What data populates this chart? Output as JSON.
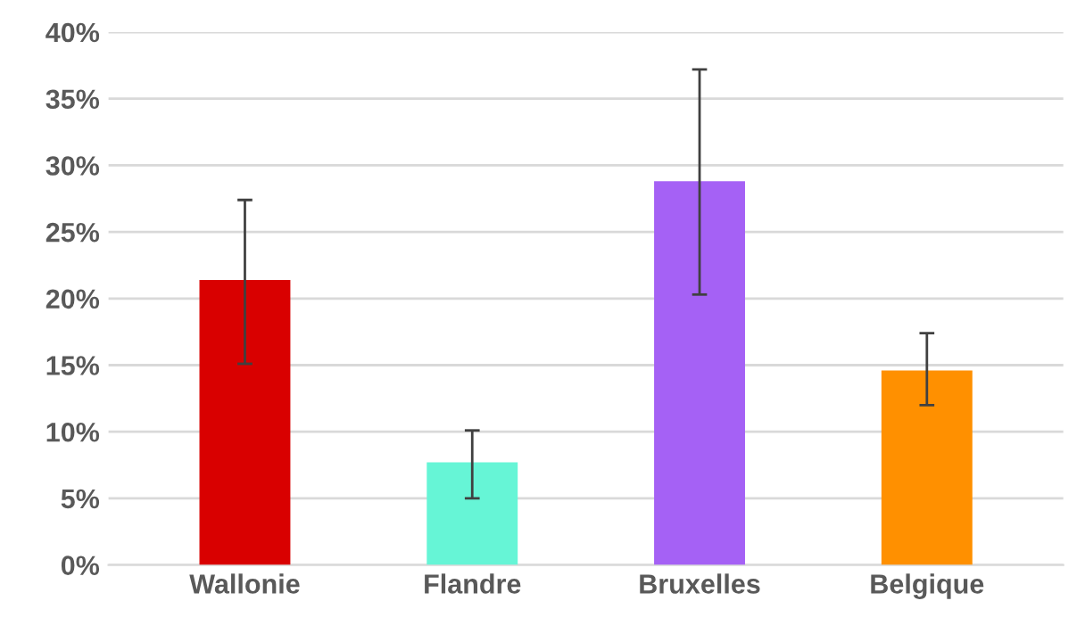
{
  "chart_data": {
    "type": "bar",
    "categories": [
      "Wallonie",
      "Flandre",
      "Bruxelles",
      "Belgique"
    ],
    "values": [
      21.4,
      7.7,
      28.8,
      14.6
    ],
    "colors": [
      "#d90000",
      "#66f5d6",
      "#a561f5",
      "#ff9000"
    ],
    "errors": [
      [
        15.1,
        27.4
      ],
      [
        5.0,
        10.1
      ],
      [
        20.3,
        37.2
      ],
      [
        12.0,
        17.4
      ]
    ],
    "ylim": [
      0,
      40
    ],
    "yticks": [
      {
        "value": 0,
        "label": "0%"
      },
      {
        "value": 5,
        "label": "5%"
      },
      {
        "value": 10,
        "label": "10%"
      },
      {
        "value": 15,
        "label": "15%"
      },
      {
        "value": 20,
        "label": "20%"
      },
      {
        "value": 25,
        "label": "25%"
      },
      {
        "value": 30,
        "label": "30%"
      },
      {
        "value": 35,
        "label": "35%"
      },
      {
        "value": 40,
        "label": "40%"
      }
    ],
    "grid": "y"
  }
}
